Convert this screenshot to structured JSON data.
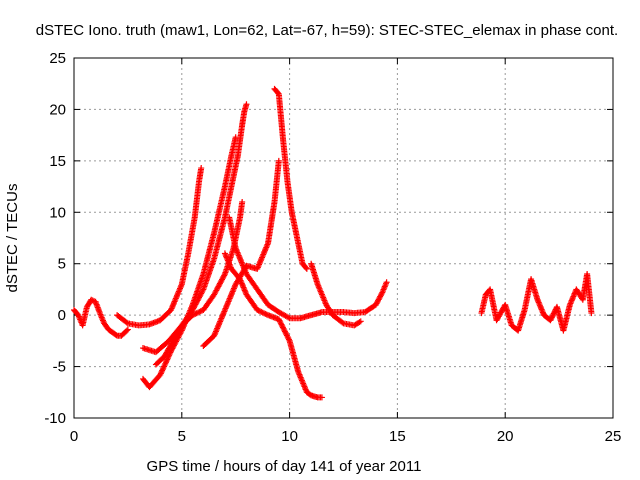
{
  "chart_data": {
    "type": "scatter",
    "title": "dSTEC Iono. truth (maw1, Lon=62, Lat=-67, h=59): STEC-STEC_elemax in phase cont.",
    "xlabel": "GPS time / hours of day 141 of year 2011",
    "ylabel": "dSTEC  / TECUs",
    "xlim": [
      0,
      25
    ],
    "ylim": [
      -10,
      25
    ],
    "xticks": [
      "0",
      "5",
      "10",
      "15",
      "20",
      "25"
    ],
    "yticks": [
      "-10",
      "-5",
      "0",
      "5",
      "10",
      "15",
      "20",
      "25"
    ],
    "grid": true,
    "marker": "plus",
    "color": "#ff0000",
    "series": [
      {
        "x": [
          0,
          0.2,
          0.4,
          0.6,
          0.8,
          1.0,
          1.2,
          1.4,
          1.6,
          1.8,
          2.0,
          2.2,
          2.5
        ],
        "y": [
          0.5,
          0,
          -1,
          0.8,
          1.5,
          1.3,
          0.2,
          -0.8,
          -1.4,
          -1.7,
          -2.0,
          -2.0,
          -1.4
        ]
      },
      {
        "x": [
          2.0,
          2.5,
          3.0,
          3.5,
          4.0,
          4.5,
          5.0,
          5.3,
          5.6,
          5.8,
          5.9
        ],
        "y": [
          0,
          -0.8,
          -1.0,
          -0.9,
          -0.5,
          0.5,
          3.0,
          6.0,
          9.5,
          13.0,
          14.3
        ]
      },
      {
        "x": [
          3.2,
          3.8,
          4.4,
          5.0,
          5.5,
          6.0,
          6.5,
          7.0,
          7.3,
          7.6,
          7.8,
          7.9,
          8.0
        ],
        "y": [
          -3.2,
          -3.6,
          -2.5,
          -1.0,
          0.5,
          2.5,
          5.5,
          9.5,
          12.5,
          15.5,
          18.5,
          19.8,
          20.5
        ]
      },
      {
        "x": [
          3.2,
          3.5,
          4.0,
          4.5,
          5.0,
          5.5,
          6.0,
          6.5,
          7.0,
          7.3,
          7.5
        ],
        "y": [
          -6.2,
          -7.0,
          -5.8,
          -3.5,
          -1.5,
          1.0,
          4.0,
          8.0,
          12.5,
          15.5,
          17.3
        ]
      },
      {
        "x": [
          3.8,
          4.2,
          4.6,
          5.0,
          5.5,
          6.0,
          6.5,
          7.0,
          7.4,
          7.7,
          7.8
        ],
        "y": [
          -4.8,
          -4.0,
          -2.5,
          -1.0,
          0.0,
          0.5,
          2.0,
          4.0,
          6.5,
          9.5,
          11.0
        ]
      },
      {
        "x": [
          7.2,
          7.5,
          8.0,
          8.5,
          9.0,
          9.5,
          10.0,
          10.5,
          11.0,
          11.5,
          12.0,
          12.5,
          13.0,
          13.5,
          14.0,
          14.3,
          14.5
        ],
        "y": [
          9.5,
          6.5,
          4.0,
          2.5,
          1.0,
          0.3,
          -0.3,
          -0.3,
          0.0,
          0.3,
          0.3,
          0.3,
          0.2,
          0.3,
          1.0,
          2.2,
          3.2
        ]
      },
      {
        "x": [
          7.0,
          7.3,
          7.7,
          8.0,
          8.5,
          9.0,
          9.5,
          10.0,
          10.4,
          10.8,
          11.0,
          11.3,
          11.5
        ],
        "y": [
          6.0,
          4.5,
          3.5,
          2.0,
          0.5,
          0.0,
          -0.4,
          -2.5,
          -5.5,
          -7.5,
          -7.8,
          -8.0,
          -8.0
        ]
      },
      {
        "x": [
          6.0,
          6.5,
          7.0,
          7.5,
          8.0,
          8.5,
          9.0,
          9.3,
          9.5
        ],
        "y": [
          -3.0,
          -2.0,
          0.5,
          3.0,
          4.8,
          4.5,
          7.0,
          11.0,
          15.0
        ]
      },
      {
        "x": [
          9.3,
          9.5,
          9.7,
          9.9,
          10.1,
          10.3,
          10.6,
          10.8
        ],
        "y": [
          22.0,
          21.5,
          17.0,
          13.0,
          10.0,
          8.0,
          5.0,
          4.5
        ]
      },
      {
        "x": [
          11.0,
          11.3,
          11.7,
          12.0,
          12.5,
          13.0,
          13.3
        ],
        "y": [
          5.0,
          3.0,
          1.0,
          0.0,
          -0.8,
          -1.0,
          -0.6
        ]
      },
      {
        "x": [
          18.9,
          19.1,
          19.3,
          19.6,
          20.0,
          20.3,
          20.6,
          20.9,
          21.2,
          21.5,
          21.8,
          22.1,
          22.4,
          22.7,
          23.0,
          23.3,
          23.6,
          23.8,
          24.0
        ],
        "y": [
          0.2,
          2.0,
          2.5,
          -0.5,
          1.0,
          -1.0,
          -1.5,
          0.5,
          3.5,
          1.5,
          0.0,
          -0.5,
          0.8,
          -1.5,
          1.0,
          2.5,
          1.5,
          4.0,
          0.2
        ]
      }
    ]
  }
}
